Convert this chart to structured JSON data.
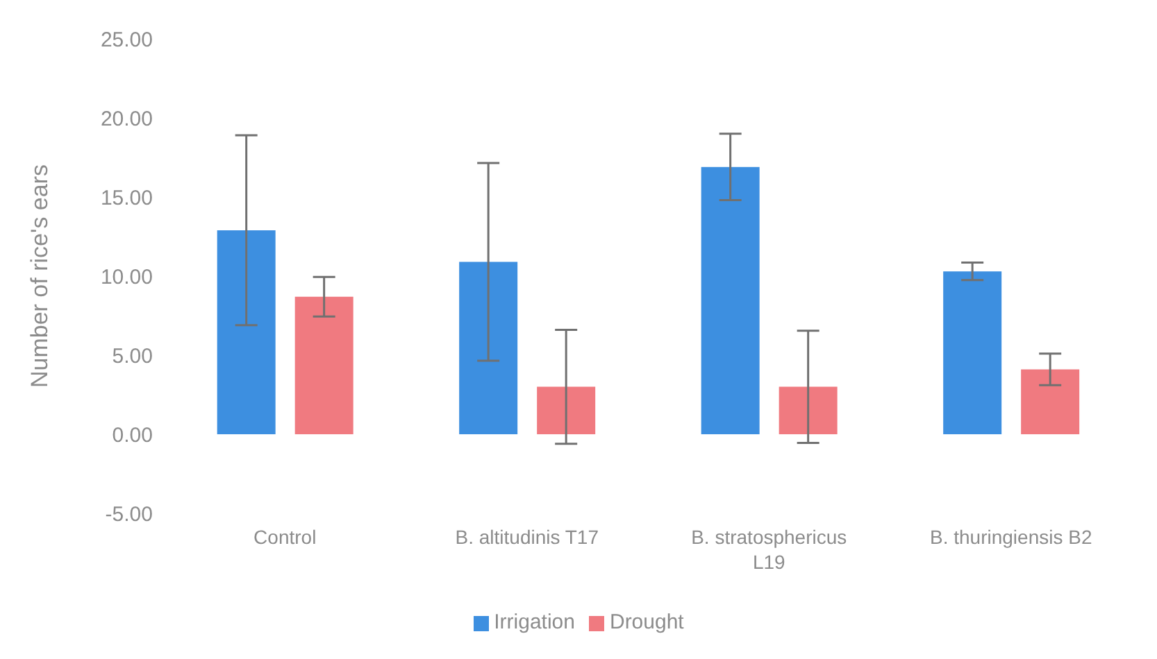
{
  "chart_data": {
    "type": "bar",
    "ylabel": "Number of rice's ears",
    "categories": [
      "Control",
      "B. altitudinis T17",
      "B. stratosphericus L19",
      "B. thuringiensis B2"
    ],
    "series": [
      {
        "name": "Irrigation",
        "color": "#3d8fe0",
        "values": [
          12.9,
          10.9,
          16.9,
          10.3
        ],
        "errors": [
          6.0,
          6.25,
          2.1,
          0.55
        ]
      },
      {
        "name": "Drought",
        "color": "#f07a80",
        "values": [
          8.7,
          3.0,
          3.0,
          4.1
        ],
        "errors": [
          1.25,
          3.6,
          3.55,
          1.0
        ]
      }
    ],
    "ylim": [
      -5,
      25
    ],
    "yticks": [
      {
        "value": -5,
        "label": "-5.00"
      },
      {
        "value": 0,
        "label": "0.00"
      },
      {
        "value": 5,
        "label": "5.00"
      },
      {
        "value": 10,
        "label": "10.00"
      },
      {
        "value": 15,
        "label": "15.00"
      },
      {
        "value": 20,
        "label": "20.00"
      },
      {
        "value": 25,
        "label": "25.00"
      }
    ],
    "grid": false,
    "legend": "bottom"
  }
}
